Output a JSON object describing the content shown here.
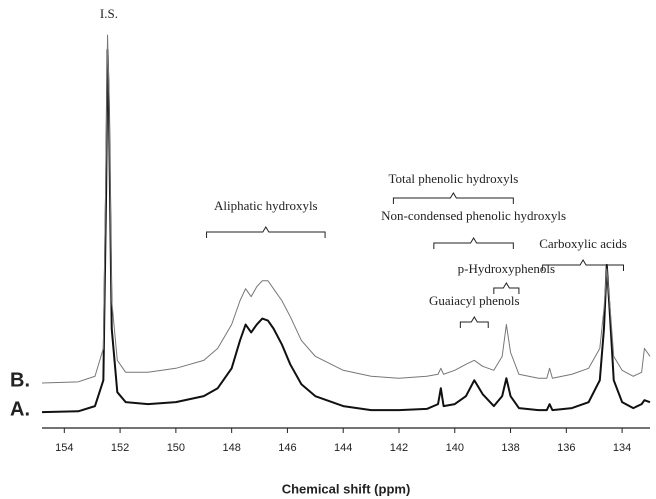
{
  "chart_data": {
    "type": "line",
    "xlabel": "Chemical shift (ppm)",
    "xlim": [
      154.8,
      133
    ],
    "xticks": [
      154,
      152,
      150,
      148,
      146,
      144,
      142,
      140,
      138,
      136,
      134
    ],
    "ylim": [
      0,
      100
    ],
    "x": [
      154.8,
      153.5,
      152.9,
      152.6,
      152.5,
      152.45,
      152.4,
      152.3,
      152.1,
      151.8,
      151.0,
      150.0,
      149.0,
      148.5,
      148.0,
      147.7,
      147.5,
      147.3,
      147.1,
      146.9,
      146.7,
      146.5,
      146.2,
      145.9,
      145.5,
      145.0,
      144.0,
      143.0,
      142.0,
      141.0,
      140.6,
      140.5,
      140.4,
      140.0,
      139.6,
      139.3,
      139.0,
      138.6,
      138.3,
      138.15,
      138.0,
      137.7,
      137.0,
      136.7,
      136.6,
      136.5,
      135.8,
      135.2,
      134.8,
      134.65,
      134.55,
      134.45,
      134.3,
      134.0,
      133.6,
      133.3,
      133.2,
      133.0
    ],
    "series": [
      {
        "name": "A.",
        "color": "#111111",
        "width": 2,
        "values": [
          4,
          4.2,
          5.5,
          12,
          60,
          95,
          80,
          25,
          9,
          6.5,
          6,
          6.5,
          8,
          10,
          15,
          22,
          26,
          24,
          26,
          27.5,
          27,
          25,
          21,
          16,
          11,
          8,
          5.5,
          4.5,
          4.5,
          4.8,
          6,
          10,
          5.5,
          6,
          8,
          12,
          8.5,
          5.5,
          8,
          12.5,
          8,
          5,
          4.5,
          4.5,
          6,
          4.5,
          5,
          6.5,
          12,
          25,
          41,
          30,
          12,
          6.5,
          5,
          6,
          7,
          6.5
        ]
      },
      {
        "name": "B.",
        "color": "#777777",
        "width": 1,
        "values": [
          11.3,
          11.6,
          13,
          20,
          70,
          98.7,
          85,
          32,
          17,
          14,
          14,
          15,
          17,
          20,
          26,
          32,
          35,
          33,
          35.5,
          37,
          37,
          35,
          32,
          28,
          22,
          18,
          14.5,
          13,
          12.5,
          13,
          13.5,
          15,
          13.5,
          14.5,
          16,
          17,
          15.5,
          14.5,
          18,
          26,
          19,
          13.5,
          12.5,
          12.5,
          15,
          12.5,
          13.5,
          15,
          20,
          30,
          40,
          32,
          18,
          14.5,
          13,
          14,
          20,
          18
        ]
      }
    ],
    "annotations": [
      {
        "text": "I.S.",
        "x": 152.4
      },
      {
        "text": "Aliphatic hydroxyls",
        "range": [
          148.9,
          144.65
        ]
      },
      {
        "text": "Total phenolic hydroxyls",
        "range": [
          142.2,
          137.9
        ]
      },
      {
        "text": "Non-condensed phenolic hydroxyls",
        "range": [
          140.75,
          137.9
        ]
      },
      {
        "text": "p-Hydroxyphenols",
        "range": [
          138.6,
          137.7
        ]
      },
      {
        "text": "Guaiacyl phenols",
        "range": [
          139.8,
          138.8
        ]
      },
      {
        "text": "Carboxylic acids",
        "range": [
          136.85,
          133.95
        ]
      }
    ]
  }
}
